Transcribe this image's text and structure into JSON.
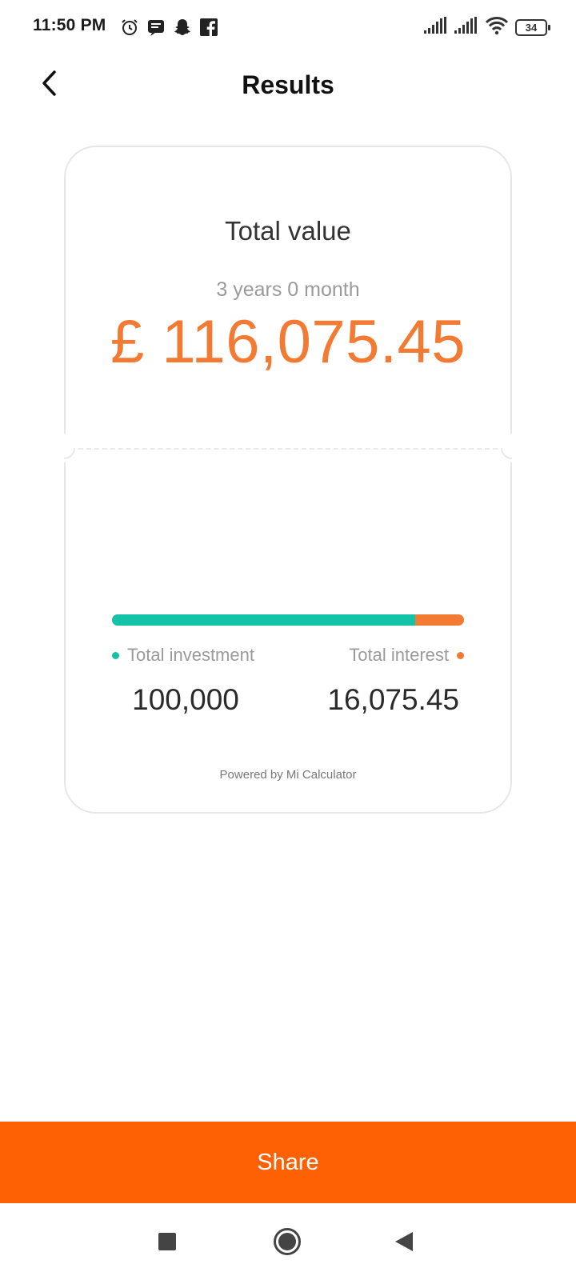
{
  "status_bar": {
    "time": "11:50 PM",
    "icons_left": [
      "alarm-icon",
      "messages-icon",
      "snapchat-icon",
      "facebook-icon"
    ],
    "icons_right": [
      "signal-1-icon",
      "signal-2-icon",
      "wifi-icon",
      "battery-icon"
    ],
    "battery_level": "34"
  },
  "header": {
    "title": "Results",
    "back_icon": "chevron-left-icon"
  },
  "card": {
    "total_label": "Total value",
    "period": "3 years 0 month",
    "total_amount": "£ 116,075.45",
    "investment_share": 0.8615,
    "investment_label": "Total investment",
    "investment_value": "100,000",
    "interest_label": "Total interest",
    "interest_value": "16,075.45",
    "powered_by": "Powered by Mi Calculator"
  },
  "colors": {
    "accent_orange": "#f37a33",
    "teal": "#12c3a8",
    "share_button": "#fd6104"
  },
  "share": {
    "label": "Share"
  },
  "nav": {
    "items": [
      "recents-icon",
      "home-icon",
      "back-icon"
    ]
  }
}
